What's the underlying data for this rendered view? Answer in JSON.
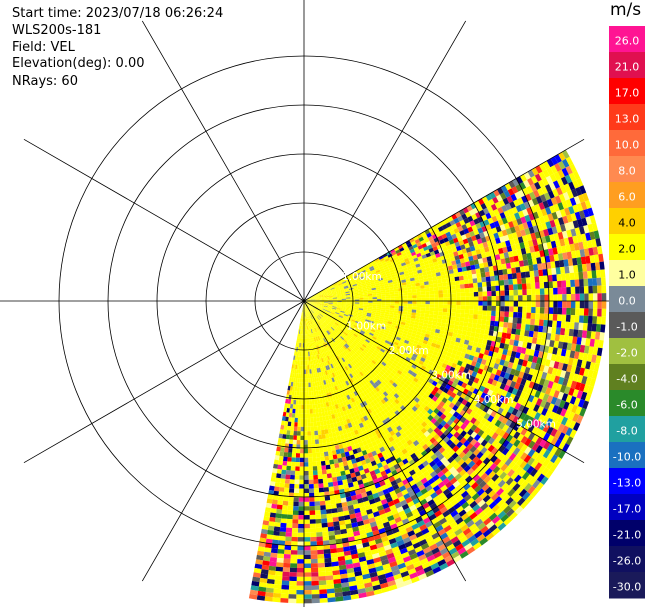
{
  "info": {
    "start_time": "Start time: 2023/07/18 06:26:24",
    "instrument": "WLS200s-181",
    "field": "Field: VEL",
    "elevation": "Elevation(deg): 0.00",
    "nrays": "NRays: 60"
  },
  "chart_data": {
    "type": "heatmap",
    "projection": "polar-ppi",
    "title": "",
    "field": "VEL",
    "elevation_deg": 0.0,
    "n_rays": 60,
    "sector_azimuth_deg": [
      60,
      190
    ],
    "range_rings_km": [
      1,
      2,
      3,
      4,
      5
    ],
    "range_labels": [
      "1.00km",
      "2.00km",
      "3.00km",
      "4.00km",
      "5.00km"
    ],
    "max_range_km": 6.1,
    "spokes_deg": [
      0,
      30,
      60,
      90,
      120,
      150,
      180,
      210,
      240,
      270,
      300,
      330
    ],
    "colorbar": {
      "unit": "m/s",
      "vmin": -30,
      "vmax": 30,
      "tick_labels": [
        "26.0",
        "21.0",
        "17.0",
        "13.0",
        "10.0",
        "8.0",
        "6.0",
        "4.0",
        "2.0",
        "1.0",
        "0.0",
        "-1.0",
        "-2.0",
        "-4.0",
        "-6.0",
        "-8.0",
        "-10.0",
        "-13.0",
        "-17.0",
        "-21.0",
        "-26.0",
        "-30.0"
      ],
      "colors": [
        "#ff1493",
        "#e01050",
        "#ff0000",
        "#ff3a1a",
        "#ff6a3a",
        "#ff8a50",
        "#ff9e20",
        "#ffd000",
        "#ffff00",
        "#ffffa0",
        "#7a8a98",
        "#5a5a5a",
        "#a0c040",
        "#608020",
        "#2a8a2a",
        "#20a0a0",
        "#1a70c0",
        "#0000ff",
        "#0000c0",
        "#00006a",
        "#101060",
        "#1a1a5a"
      ]
    },
    "pattern": "Near-range region (up to ~3.5 km) dominated by ~2 m/s (yellow) with gray near-zero streaks; beyond ~3.5 km noisy mixed velocities across the full colour scale."
  }
}
